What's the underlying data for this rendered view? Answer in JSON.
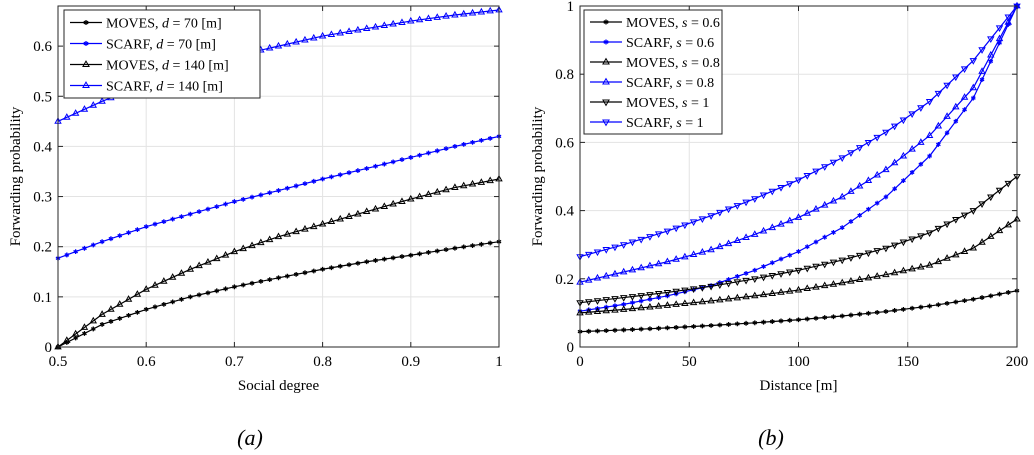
{
  "chart_data": [
    {
      "type": "line",
      "caption": "(a)",
      "xlabel": "Social degree",
      "ylabel": "Forwarding probability",
      "xlim": [
        0.5,
        1
      ],
      "ylim": [
        0,
        0.68
      ],
      "xticks": [
        0.5,
        0.6,
        0.7,
        0.8,
        0.9,
        1
      ],
      "xticklabels": [
        "0.5",
        "0.6",
        "0.7",
        "0.8",
        "0.9",
        "1"
      ],
      "yticks": [
        0,
        0.1,
        0.2,
        0.3,
        0.4,
        0.5,
        0.6
      ],
      "yticklabels": [
        "0",
        "0.1",
        "0.2",
        "0.3",
        "0.4",
        "0.5",
        "0.6"
      ],
      "grid": true,
      "legend_position": "top-left",
      "x": [
        0.5,
        0.55,
        0.6,
        0.65,
        0.7,
        0.75,
        0.8,
        0.85,
        0.9,
        0.95,
        1.0
      ],
      "series": [
        {
          "name": "MOVES",
          "param": "d",
          "param_value": "= 70 [m]",
          "color": "#000000",
          "marker": "asterisk",
          "values": [
            0.0,
            0.045,
            0.075,
            0.1,
            0.12,
            0.138,
            0.155,
            0.17,
            0.183,
            0.197,
            0.21
          ]
        },
        {
          "name": "SCARF",
          "param": "d",
          "param_value": "= 70 [m]",
          "color": "#0000ff",
          "marker": "asterisk",
          "values": [
            0.177,
            0.21,
            0.24,
            0.265,
            0.29,
            0.312,
            0.335,
            0.356,
            0.378,
            0.4,
            0.42
          ]
        },
        {
          "name": "MOVES",
          "param": "d",
          "param_value": "= 140 [m]",
          "color": "#000000",
          "marker": "triangle-up",
          "values": [
            0.0,
            0.065,
            0.115,
            0.155,
            0.19,
            0.22,
            0.245,
            0.27,
            0.295,
            0.318,
            0.335
          ]
        },
        {
          "name": "SCARF",
          "param": "d",
          "param_value": "= 140 [m]",
          "color": "#0000ff",
          "marker": "triangle-up",
          "values": [
            0.45,
            0.49,
            0.525,
            0.555,
            0.58,
            0.6,
            0.62,
            0.635,
            0.65,
            0.662,
            0.672
          ]
        }
      ]
    },
    {
      "type": "line",
      "caption": "(b)",
      "xlabel": "Distance [m]",
      "ylabel": "Forwarding probability",
      "xlim": [
        0,
        200
      ],
      "ylim": [
        0,
        1
      ],
      "xticks": [
        0,
        50,
        100,
        150,
        200
      ],
      "xticklabels": [
        "0",
        "50",
        "100",
        "150",
        "200"
      ],
      "yticks": [
        0,
        0.2,
        0.4,
        0.6,
        0.8,
        1
      ],
      "yticklabels": [
        "0",
        "0.2",
        "0.4",
        "0.6",
        "0.8",
        "1"
      ],
      "grid": true,
      "legend_position": "top-left",
      "x": [
        0,
        20,
        40,
        60,
        80,
        100,
        120,
        140,
        160,
        180,
        200
      ],
      "series": [
        {
          "name": "MOVES",
          "param": "s",
          "param_value": "= 0.6",
          "color": "#000000",
          "marker": "asterisk",
          "values": [
            0.045,
            0.05,
            0.056,
            0.063,
            0.071,
            0.08,
            0.091,
            0.104,
            0.12,
            0.14,
            0.165
          ]
        },
        {
          "name": "SCARF",
          "param": "s",
          "param_value": "= 0.6",
          "color": "#0000ff",
          "marker": "asterisk",
          "values": [
            0.105,
            0.125,
            0.15,
            0.18,
            0.225,
            0.28,
            0.35,
            0.44,
            0.56,
            0.73,
            1.0
          ]
        },
        {
          "name": "MOVES",
          "param": "s",
          "param_value": "= 0.8",
          "color": "#000000",
          "marker": "triangle-up",
          "values": [
            0.1,
            0.11,
            0.122,
            0.135,
            0.15,
            0.167,
            0.188,
            0.212,
            0.24,
            0.29,
            0.375
          ]
        },
        {
          "name": "SCARF",
          "param": "s",
          "param_value": "= 0.8",
          "color": "#0000ff",
          "marker": "triangle-up",
          "values": [
            0.19,
            0.22,
            0.25,
            0.285,
            0.33,
            0.38,
            0.44,
            0.52,
            0.62,
            0.76,
            1.0
          ]
        },
        {
          "name": "MOVES",
          "param": "s",
          "param_value": "= 1",
          "color": "#000000",
          "marker": "triangle-down",
          "values": [
            0.13,
            0.145,
            0.16,
            0.178,
            0.2,
            0.225,
            0.255,
            0.29,
            0.335,
            0.4,
            0.5
          ]
        },
        {
          "name": "SCARF",
          "param": "s",
          "param_value": "= 1",
          "color": "#0000ff",
          "marker": "triangle-down",
          "values": [
            0.265,
            0.3,
            0.34,
            0.385,
            0.435,
            0.49,
            0.555,
            0.63,
            0.72,
            0.84,
            1.0
          ]
        }
      ]
    }
  ]
}
